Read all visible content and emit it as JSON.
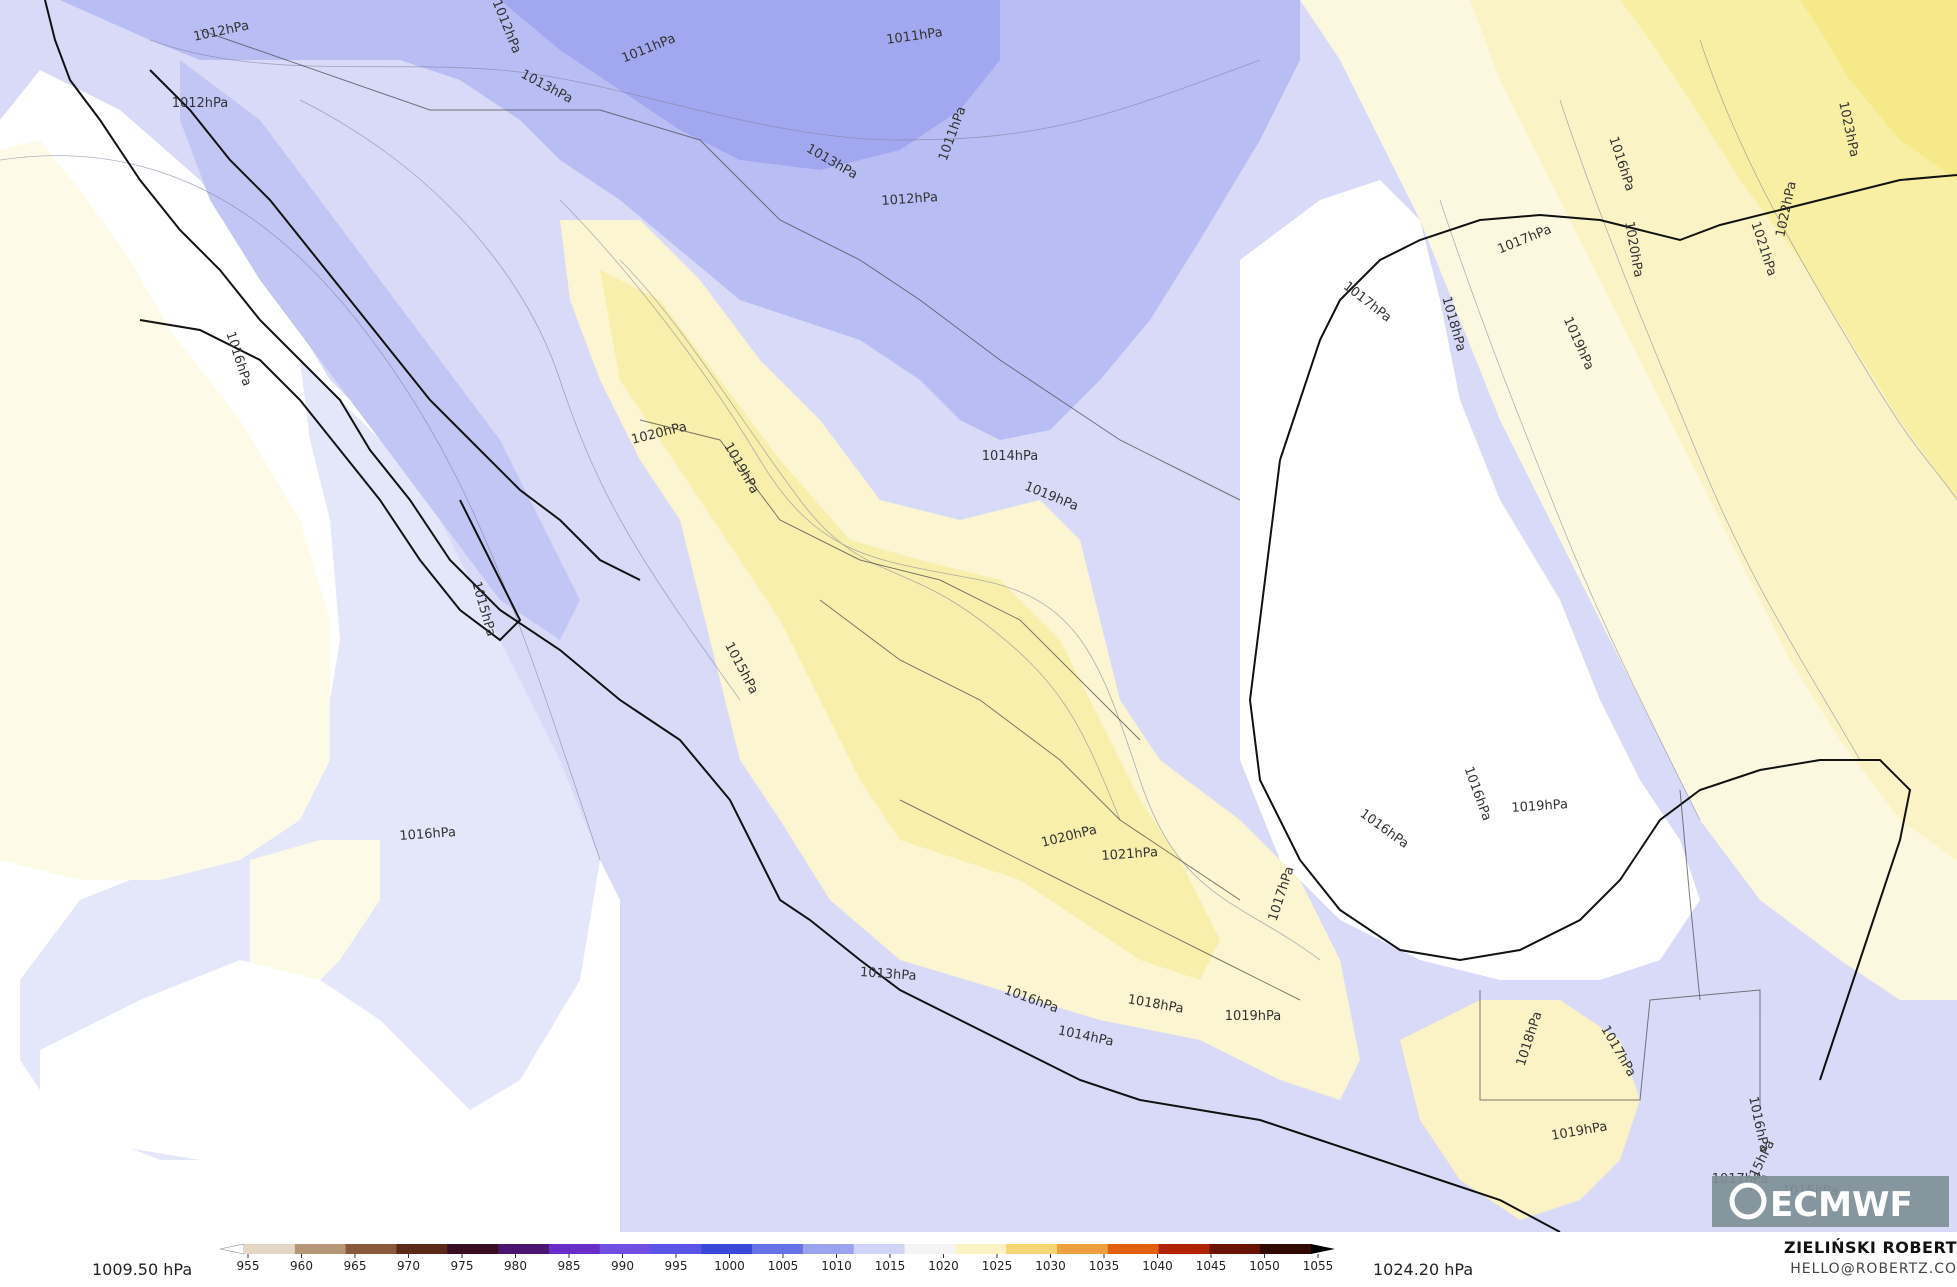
{
  "map": {
    "isobar_labels": [
      {
        "text": "1012hPa",
        "rot": -12
      },
      {
        "text": "1012hPa",
        "rot": 68
      },
      {
        "text": "1011hPa",
        "rot": -22
      },
      {
        "text": "1011hPa",
        "rot": -8
      },
      {
        "text": "1013hPa",
        "rot": 28
      },
      {
        "text": "1012hPa",
        "rot": 0
      },
      {
        "text": "1013hPa",
        "rot": 30
      },
      {
        "text": "1011hPa",
        "rot": -70
      },
      {
        "text": "1012hPa",
        "rot": -4
      },
      {
        "text": "1016hPa",
        "rot": 72
      },
      {
        "text": "1020hPa",
        "rot": -14
      },
      {
        "text": "1019hPa",
        "rot": 60
      },
      {
        "text": "1014hPa",
        "rot": 0
      },
      {
        "text": "1019hPa",
        "rot": 22
      },
      {
        "text": "1015hPa",
        "rot": 74
      },
      {
        "text": "1015hPa",
        "rot": 62
      },
      {
        "text": "1016hPa",
        "rot": -4
      },
      {
        "text": "1020hPa",
        "rot": -14
      },
      {
        "text": "1021hPa",
        "rot": -4
      },
      {
        "text": "1017hPa",
        "rot": -72
      },
      {
        "text": "1013hPa",
        "rot": 4
      },
      {
        "text": "1016hPa",
        "rot": 20
      },
      {
        "text": "1014hPa",
        "rot": 12
      },
      {
        "text": "1018hPa",
        "rot": 10
      },
      {
        "text": "1019hPa",
        "rot": 0
      },
      {
        "text": "1017hPa",
        "rot": 38
      },
      {
        "text": "1018hPa",
        "rot": 74
      },
      {
        "text": "1019hPa",
        "rot": 66
      },
      {
        "text": "1016hPa",
        "rot": 72
      },
      {
        "text": "1017hPa",
        "rot": -22
      },
      {
        "text": "1016hPa",
        "rot": 36
      },
      {
        "text": "1016hPa",
        "rot": 70
      },
      {
        "text": "1019hPa",
        "rot": -4
      },
      {
        "text": "1017hPa",
        "rot": 60
      },
      {
        "text": "1018hPa",
        "rot": -72
      },
      {
        "text": "1019hPa",
        "rot": -10
      },
      {
        "text": "1016hPa",
        "rot": 78
      },
      {
        "text": "1015hPa",
        "rot": -64
      },
      {
        "text": "1017hPa",
        "rot": 0
      },
      {
        "text": "1015hPa",
        "rot": 0
      },
      {
        "text": "1020hPa",
        "rot": 80
      },
      {
        "text": "1021hPa",
        "rot": 72
      },
      {
        "text": "1022hPa",
        "rot": -78
      },
      {
        "text": "1023hPa",
        "rot": 78
      }
    ],
    "colors": {
      "low": "#aab0f2",
      "mid_low": "#c9ccf6",
      "neutral": "#ffffff",
      "mid_high": "#fbf5cf",
      "high": "#f7ee9c",
      "coast": "#111111"
    }
  },
  "colorbar": {
    "min_label": "1009.50 hPa",
    "max_label": "1024.20 hPa",
    "ticks": [
      "955",
      "960",
      "965",
      "970",
      "975",
      "980",
      "985",
      "990",
      "995",
      "1000",
      "1005",
      "1010",
      "1015",
      "1020",
      "1025",
      "1030",
      "1035",
      "1040",
      "1045",
      "1050",
      "1055"
    ],
    "colors": [
      "#ffffff",
      "#e3d6c4",
      "#b59676",
      "#8a5a3c",
      "#5c2818",
      "#3a0e20",
      "#4a1470",
      "#6a2ec8",
      "#6f4ee0",
      "#5a55e6",
      "#3a48d8",
      "#6672e6",
      "#9aa3ee",
      "#d0d4f6",
      "#f4f4f4",
      "#fbf3c4",
      "#f4d676",
      "#eea040",
      "#e06010",
      "#b02404",
      "#6a1204",
      "#300800",
      "#000000"
    ]
  },
  "credits": {
    "author": "ZIELIŃSKI ROBERT",
    "email": "HELLO@ROBERTZ.CO",
    "logo_text": "ECMWF"
  }
}
